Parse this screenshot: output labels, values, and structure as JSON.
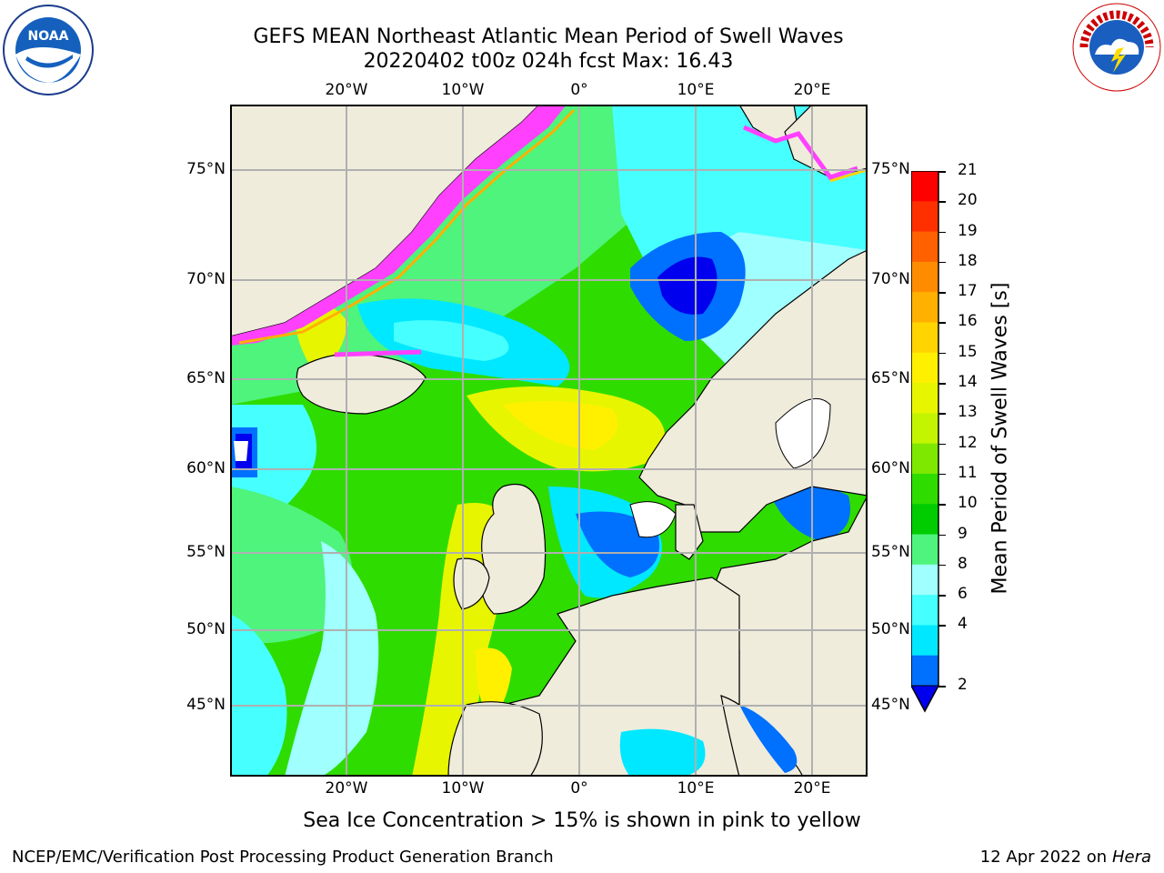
{
  "title": {
    "line1": "GEFS MEAN Northeast Atlantic Mean Period of Swell Waves",
    "line2": "20220402 t00z 024h fcst   Max: 16.43"
  },
  "map": {
    "lon_labels": [
      "20°W",
      "10°W",
      "0°",
      "10°E",
      "20°E"
    ],
    "lat_labels": [
      "75°N",
      "70°N",
      "65°N",
      "60°N",
      "55°N",
      "50°N",
      "45°N"
    ],
    "icons": [
      "noaa-logo-icon",
      "nws-logo-icon"
    ],
    "colors": {
      "land": "#efecdc",
      "ocean_mid": "#4fef7a",
      "grid": "#b0b0b0"
    }
  },
  "colorbar": {
    "title": "Mean Period of Swell Waves [s]",
    "ticks": [
      "21",
      "20",
      "19",
      "18",
      "17",
      "16",
      "15",
      "14",
      "13",
      "12",
      "11",
      "10",
      "9",
      "8",
      "6",
      "4",
      "2"
    ],
    "colors": [
      "#ff0000",
      "#ff3000",
      "#ff6000",
      "#ff8c00",
      "#ffb000",
      "#ffd400",
      "#fff000",
      "#e8f500",
      "#c4f500",
      "#7fe800",
      "#2fdc00",
      "#00cc00",
      "#4ef47c",
      "#a0ffff",
      "#46ffff",
      "#00e8ff",
      "#0070ff"
    ]
  },
  "caption": "Sea Ice Concentration > 15% is shown in pink to yellow",
  "footer": {
    "left": "NCEP/EMC/Verification Post Processing Product Generation Branch",
    "right_prefix": "12 Apr 2022 on ",
    "right_host": "Hera"
  }
}
